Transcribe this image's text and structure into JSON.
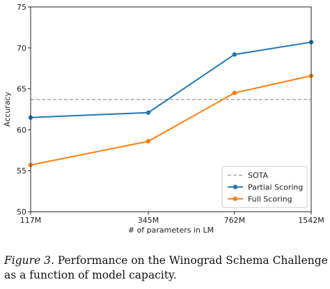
{
  "chart_data": {
    "type": "line",
    "title": "",
    "xlabel": "# of parameters in LM",
    "ylabel": "Accuracy",
    "categories": [
      "117M",
      "345M",
      "762M",
      "1542M"
    ],
    "x_values": [
      117,
      345,
      762,
      1542
    ],
    "x_scale": "log",
    "ylim": [
      50,
      75
    ],
    "yticks": [
      50,
      55,
      60,
      65,
      70,
      75
    ],
    "grid": false,
    "legend_position": "lower-right",
    "reference_lines": [
      {
        "name": "SOTA",
        "value": 63.7,
        "color": "#999999",
        "style": "dashed"
      }
    ],
    "series": [
      {
        "name": "Partial Scoring",
        "color": "#1f77b4",
        "values": [
          61.5,
          62.1,
          69.2,
          70.7
        ]
      },
      {
        "name": "Full Scoring",
        "color": "#ff7f0e",
        "values": [
          55.7,
          58.6,
          64.5,
          66.6
        ]
      }
    ]
  },
  "caption": {
    "label": "Figure 3.",
    "text": " Performance on the Winograd Schema Challenge as a function of model capacity."
  }
}
